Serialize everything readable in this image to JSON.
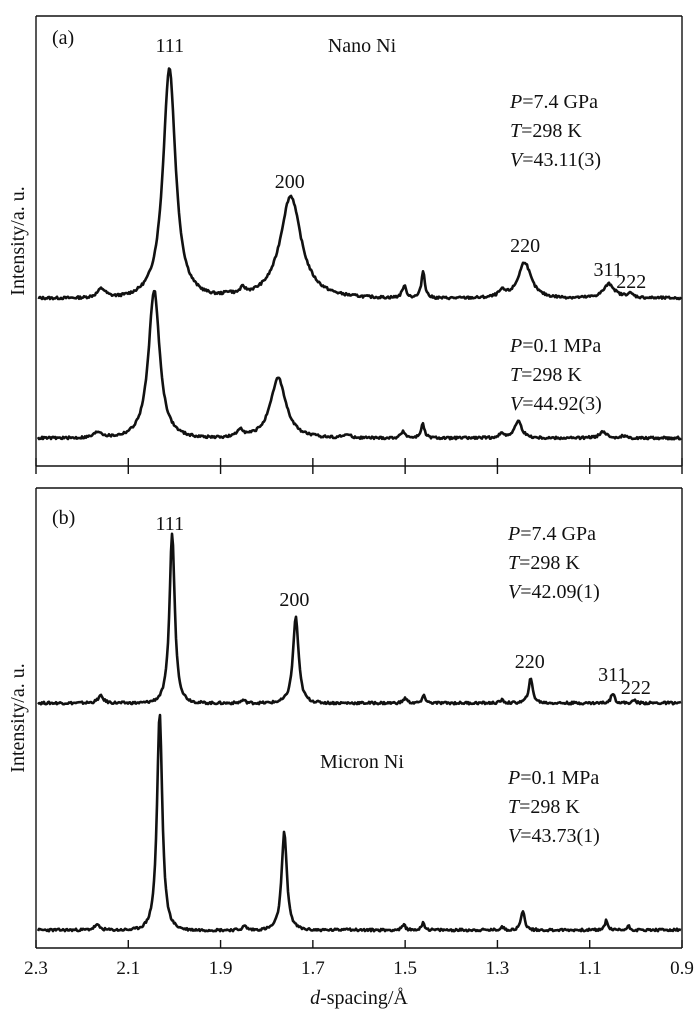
{
  "chart_data": [
    {
      "panel": "(a)",
      "type": "line",
      "title": "Nano Ni",
      "xlabel": "d-spacing/Å",
      "ylabel": "Intensity/a. u.",
      "xlim": [
        2.3,
        0.9
      ],
      "x_reversed": true,
      "x_ticks": [
        2.3,
        2.1,
        1.9,
        1.7,
        1.5,
        1.3,
        1.1,
        0.9
      ],
      "peak_labels": [
        {
          "label": "111",
          "d": 2.01
        },
        {
          "label": "200",
          "d": 1.75
        },
        {
          "label": "220",
          "d": 1.24
        },
        {
          "label": "311",
          "d": 1.06
        },
        {
          "label": "222",
          "d": 1.01
        }
      ],
      "series": [
        {
          "name": "P=7.4 GPa",
          "conditions": [
            "P=7.4 GPa",
            "T=298 K",
            "V=43.11(3)"
          ],
          "conditions_parts": [
            {
              "sym": "P",
              "rest": "=7.4 GPa"
            },
            {
              "sym": "T",
              "rest": "=298 K"
            },
            {
              "sym": "V",
              "rest": "=43.11(3)"
            }
          ],
          "baseline": 0,
          "peaks": [
            {
              "d": 2.158,
              "h": 0.09,
              "w": 0.012
            },
            {
              "d": 2.011,
              "h": 2.3,
              "w": 0.018
            },
            {
              "d": 1.883,
              "h": 0.03,
              "w": 0.01
            },
            {
              "d": 1.852,
              "h": 0.06,
              "w": 0.008
            },
            {
              "d": 1.748,
              "h": 1.02,
              "w": 0.03
            },
            {
              "d": 1.502,
              "h": 0.12,
              "w": 0.006
            },
            {
              "d": 1.461,
              "h": 0.27,
              "w": 0.005
            },
            {
              "d": 1.29,
              "h": 0.06,
              "w": 0.01
            },
            {
              "d": 1.241,
              "h": 0.36,
              "w": 0.018
            },
            {
              "d": 1.058,
              "h": 0.14,
              "w": 0.016
            },
            {
              "d": 1.013,
              "h": 0.04,
              "w": 0.01
            }
          ]
        },
        {
          "name": "P=0.1 MPa",
          "conditions": [
            "P=0.1 MPa",
            "T=298 K",
            "V=44.92(3)"
          ],
          "conditions_parts": [
            {
              "sym": "P",
              "rest": "=0.1 MPa"
            },
            {
              "sym": "T",
              "rest": "=298 K"
            },
            {
              "sym": "V",
              "rest": "=44.92(3)"
            }
          ],
          "baseline": 0,
          "peaks": [
            {
              "d": 2.165,
              "h": 0.06,
              "w": 0.012
            },
            {
              "d": 2.044,
              "h": 1.48,
              "w": 0.016
            },
            {
              "d": 1.857,
              "h": 0.08,
              "w": 0.008
            },
            {
              "d": 1.775,
              "h": 0.6,
              "w": 0.022
            },
            {
              "d": 1.627,
              "h": 0.03,
              "w": 0.012
            },
            {
              "d": 1.504,
              "h": 0.07,
              "w": 0.006
            },
            {
              "d": 1.462,
              "h": 0.14,
              "w": 0.005
            },
            {
              "d": 1.29,
              "h": 0.04,
              "w": 0.01
            },
            {
              "d": 1.255,
              "h": 0.17,
              "w": 0.01
            },
            {
              "d": 1.072,
              "h": 0.06,
              "w": 0.01
            },
            {
              "d": 1.028,
              "h": 0.02,
              "w": 0.008
            }
          ]
        }
      ]
    },
    {
      "panel": "(b)",
      "type": "line",
      "title": "Micron Ni",
      "xlabel": "d-spacing/Å",
      "ylabel": "Intensity/a. u.",
      "xlim": [
        2.3,
        0.9
      ],
      "x_reversed": true,
      "x_ticks": [
        2.3,
        2.1,
        1.9,
        1.7,
        1.5,
        1.3,
        1.1,
        0.9
      ],
      "peak_labels": [
        {
          "label": "111",
          "d": 2.01
        },
        {
          "label": "200",
          "d": 1.74
        },
        {
          "label": "220",
          "d": 1.23
        },
        {
          "label": "311",
          "d": 1.05
        },
        {
          "label": "222",
          "d": 1.0
        }
      ],
      "series": [
        {
          "name": "P=7.4 GPa",
          "conditions": [
            "P=7.4 GPa",
            "T=298 K",
            "V=42.09(1)"
          ],
          "conditions_parts": [
            {
              "sym": "P",
              "rest": "=7.4 GPa"
            },
            {
              "sym": "T",
              "rest": "=298 K"
            },
            {
              "sym": "V",
              "rest": "=42.09(1)"
            }
          ],
          "baseline": 0,
          "peaks": [
            {
              "d": 2.16,
              "h": 0.07,
              "w": 0.008
            },
            {
              "d": 2.005,
              "h": 1.7,
              "w": 0.0075
            },
            {
              "d": 1.851,
              "h": 0.03,
              "w": 0.006
            },
            {
              "d": 1.737,
              "h": 0.86,
              "w": 0.008
            },
            {
              "d": 1.5,
              "h": 0.05,
              "w": 0.005
            },
            {
              "d": 1.459,
              "h": 0.08,
              "w": 0.004
            },
            {
              "d": 1.29,
              "h": 0.03,
              "w": 0.005
            },
            {
              "d": 1.228,
              "h": 0.24,
              "w": 0.006
            },
            {
              "d": 1.05,
              "h": 0.1,
              "w": 0.005
            },
            {
              "d": 1.003,
              "h": 0.03,
              "w": 0.004
            }
          ]
        },
        {
          "name": "P=0.1 MPa",
          "conditions": [
            "P=0.1 MPa",
            "T=298 K",
            "V=43.73(1)"
          ],
          "conditions_parts": [
            {
              "sym": "P",
              "rest": "=0.1 MPa"
            },
            {
              "sym": "T",
              "rest": "=298 K"
            },
            {
              "sym": "V",
              "rest": "=43.73(1)"
            }
          ],
          "baseline": 0,
          "peaks": [
            {
              "d": 2.168,
              "h": 0.05,
              "w": 0.008
            },
            {
              "d": 2.032,
              "h": 2.17,
              "w": 0.0075
            },
            {
              "d": 1.848,
              "h": 0.04,
              "w": 0.006
            },
            {
              "d": 1.762,
              "h": 0.98,
              "w": 0.0075
            },
            {
              "d": 1.627,
              "h": 0.02,
              "w": 0.006
            },
            {
              "d": 1.503,
              "h": 0.05,
              "w": 0.005
            },
            {
              "d": 1.461,
              "h": 0.08,
              "w": 0.004
            },
            {
              "d": 1.29,
              "h": 0.03,
              "w": 0.005
            },
            {
              "d": 1.245,
              "h": 0.2,
              "w": 0.005
            },
            {
              "d": 1.064,
              "h": 0.1,
              "w": 0.004
            },
            {
              "d": 1.016,
              "h": 0.04,
              "w": 0.004
            }
          ]
        }
      ]
    }
  ]
}
